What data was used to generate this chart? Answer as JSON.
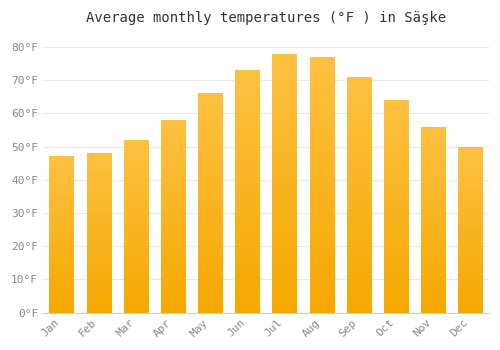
{
  "title": "Average monthly temperatures (°F ) in Säşke",
  "months": [
    "Jan",
    "Feb",
    "Mar",
    "Apr",
    "May",
    "Jun",
    "Jul",
    "Aug",
    "Sep",
    "Oct",
    "Nov",
    "Dec"
  ],
  "values": [
    47,
    48,
    52,
    58,
    66,
    73,
    78,
    77,
    71,
    64,
    56,
    50
  ],
  "bar_color_top": "#FDC142",
  "bar_color_bottom": "#F5A800",
  "bar_edge_color": "#E09000",
  "background_color": "#FFFFFF",
  "plot_bg_color": "#FFFFFF",
  "grid_color": "#E8E8E8",
  "yticks": [
    0,
    10,
    20,
    30,
    40,
    50,
    60,
    70,
    80
  ],
  "ylim": [
    0,
    85
  ],
  "title_fontsize": 10,
  "tick_fontsize": 8,
  "tick_label_color": "#888888",
  "title_color": "#333333",
  "font_family": "monospace"
}
